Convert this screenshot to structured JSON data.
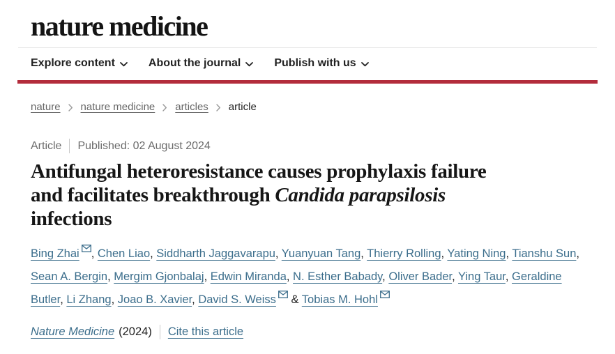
{
  "header": {
    "logo": "nature medicine",
    "nav": [
      {
        "label": "Explore content"
      },
      {
        "label": "About the journal"
      },
      {
        "label": "Publish with us"
      }
    ]
  },
  "breadcrumb": {
    "items": [
      {
        "label": "nature",
        "link": true
      },
      {
        "label": "nature medicine",
        "link": true
      },
      {
        "label": "articles",
        "link": true
      },
      {
        "label": "article",
        "link": false
      }
    ]
  },
  "article": {
    "type_label": "Article",
    "published_label": "Published: 02 August 2024",
    "title_lines": [
      [
        {
          "t": "Antifungal heteroresistance causes prophylaxis failure"
        }
      ],
      [
        {
          "t": "and facilitates breakthrough "
        },
        {
          "t": "Candida parapsilosis",
          "i": true
        }
      ],
      [
        {
          "t": "infections"
        }
      ]
    ],
    "authors": [
      {
        "name": "Bing Zhai",
        "email": true
      },
      {
        "name": "Chen Liao"
      },
      {
        "name": "Siddharth Jaggavarapu"
      },
      {
        "name": "Yuanyuan Tang"
      },
      {
        "name": "Thierry Rolling"
      },
      {
        "name": "Yating Ning"
      },
      {
        "name": "Tianshu Sun"
      },
      {
        "name": "Sean A. Bergin"
      },
      {
        "name": "Mergim Gjonbalaj"
      },
      {
        "name": "Edwin Miranda"
      },
      {
        "name": "N. Esther Babady"
      },
      {
        "name": "Oliver Bader"
      },
      {
        "name": "Ying Taur"
      },
      {
        "name": "Geraldine Butler"
      },
      {
        "name": "Li Zhang"
      },
      {
        "name": "Joao B. Xavier"
      },
      {
        "name": "David S. Weiss",
        "email": true
      },
      {
        "name": "Tobias M. Hohl",
        "email": true
      }
    ],
    "journal": "Nature Medicine",
    "year": "(2024)",
    "cite_label": "Cite this article"
  },
  "icons": {
    "nav_chevron": "chevron-down-icon",
    "breadcrumb_separator": "chevron-right-icon",
    "author_email": "envelope-icon"
  },
  "colors": {
    "accent_red": "#b32c3c",
    "link_teal": "#3c6e8c",
    "text_dark": "#222222",
    "text_gray": "#666666"
  }
}
